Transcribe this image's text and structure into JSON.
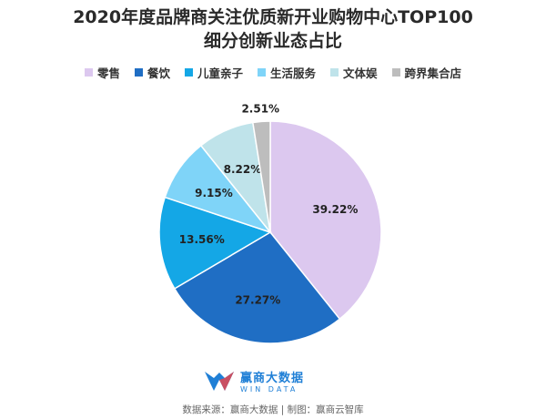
{
  "title_line1": "2020年度品牌商关注优质新开业购物中心TOP100",
  "title_line2": "细分创新业态占比",
  "chart_data": {
    "type": "pie",
    "categories": [
      "零售",
      "餐饮",
      "儿童亲子",
      "生活服务",
      "文体娱",
      "跨界集合店"
    ],
    "values": [
      39.22,
      27.27,
      13.56,
      9.15,
      8.22,
      2.51
    ],
    "labels": [
      "39.22%",
      "27.27%",
      "13.56%",
      "9.15%",
      "8.22%",
      "2.51%"
    ],
    "colors": [
      "#dcc8ef",
      "#1f6ec4",
      "#14a7e6",
      "#7fd4f8",
      "#bfe3ea",
      "#bdbdbd"
    ],
    "legend_position": "top"
  },
  "brand": {
    "name_cn": "赢商大数据",
    "name_en": "WIN DATA",
    "logo_colors": [
      "#1f7fd6",
      "#e8474e"
    ]
  },
  "source_text": "数据来源：赢商大数据 | 制图：赢商云智库"
}
